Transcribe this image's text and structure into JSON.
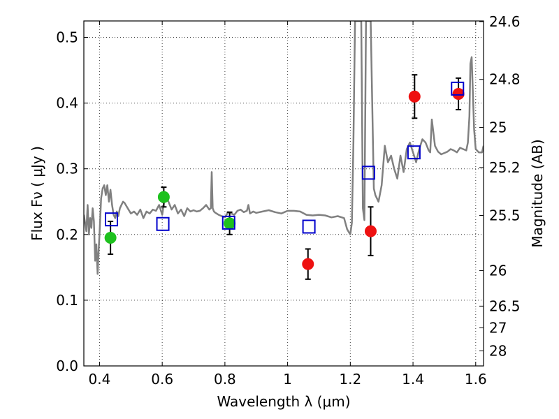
{
  "chart_data": {
    "type": "scatter",
    "title": "",
    "xlabel": "Wavelength  λ (μm)",
    "ylabel": "Flux  Fν  ( μJy )",
    "ylabel_right": "Magnitude (AB)",
    "xlim": [
      0.35,
      1.625
    ],
    "ylim": [
      0.0,
      0.525
    ],
    "grid": true,
    "x_ticks": [
      0.4,
      0.6,
      0.8,
      1.0,
      1.2,
      1.4,
      1.6
    ],
    "x_tick_labels": [
      "0.4",
      "0.6",
      "0.8",
      "1",
      "1.2",
      "1.4",
      "1.6"
    ],
    "y_ticks": [
      0.0,
      0.1,
      0.2,
      0.3,
      0.4,
      0.5
    ],
    "y_tick_labels": [
      "0.0",
      "0.1",
      "0.2",
      "0.3",
      "0.4",
      "0.5"
    ],
    "right_ticks": [
      {
        "label": "24.6",
        "flux": 0.524
      },
      {
        "label": "24.8",
        "flux": 0.436
      },
      {
        "label": "25",
        "flux": 0.363
      },
      {
        "label": "25.2",
        "flux": 0.302
      },
      {
        "label": "25.5",
        "flux": 0.229
      },
      {
        "label": "26",
        "flux": 0.145
      },
      {
        "label": "26.5",
        "flux": 0.091
      },
      {
        "label": "27",
        "flux": 0.058
      },
      {
        "label": "28",
        "flux": 0.023
      }
    ],
    "series": [
      {
        "kind": "line",
        "color": "#808080",
        "x": [
          0.35,
          0.358,
          0.362,
          0.366,
          0.37,
          0.374,
          0.378,
          0.382,
          0.386,
          0.39,
          0.394,
          0.397,
          0.4,
          0.405,
          0.41,
          0.415,
          0.42,
          0.425,
          0.43,
          0.435,
          0.44,
          0.445,
          0.45,
          0.455,
          0.46,
          0.465,
          0.47,
          0.475,
          0.48,
          0.49,
          0.5,
          0.51,
          0.52,
          0.53,
          0.54,
          0.55,
          0.56,
          0.57,
          0.58,
          0.59,
          0.6,
          0.61,
          0.62,
          0.63,
          0.64,
          0.65,
          0.66,
          0.67,
          0.68,
          0.69,
          0.7,
          0.71,
          0.72,
          0.73,
          0.74,
          0.75,
          0.755,
          0.758,
          0.761,
          0.765,
          0.77,
          0.78,
          0.79,
          0.8,
          0.81,
          0.82,
          0.83,
          0.84,
          0.85,
          0.86,
          0.87,
          0.875,
          0.88,
          0.89,
          0.9,
          0.92,
          0.94,
          0.96,
          0.98,
          1.0,
          1.02,
          1.04,
          1.06,
          1.08,
          1.1,
          1.12,
          1.14,
          1.16,
          1.18,
          1.19,
          1.2,
          1.205,
          1.21,
          1.215,
          1.22,
          1.225,
          1.23,
          1.235,
          1.24,
          1.245,
          1.25,
          1.255,
          1.26,
          1.265,
          1.27,
          1.275,
          1.28,
          1.29,
          1.3,
          1.31,
          1.32,
          1.33,
          1.34,
          1.35,
          1.36,
          1.37,
          1.38,
          1.39,
          1.4,
          1.41,
          1.42,
          1.43,
          1.44,
          1.45,
          1.455,
          1.46,
          1.47,
          1.48,
          1.49,
          1.5,
          1.51,
          1.52,
          1.53,
          1.54,
          1.55,
          1.56,
          1.57,
          1.575,
          1.58,
          1.583,
          1.587,
          1.59,
          1.595,
          1.6,
          1.61,
          1.62,
          1.625
        ],
        "values": [
          0.23,
          0.205,
          0.245,
          0.2,
          0.225,
          0.21,
          0.24,
          0.22,
          0.16,
          0.185,
          0.14,
          0.175,
          0.2,
          0.255,
          0.27,
          0.275,
          0.26,
          0.275,
          0.25,
          0.268,
          0.245,
          0.23,
          0.225,
          0.235,
          0.228,
          0.24,
          0.245,
          0.25,
          0.248,
          0.24,
          0.232,
          0.235,
          0.23,
          0.238,
          0.225,
          0.235,
          0.232,
          0.238,
          0.236,
          0.245,
          0.23,
          0.262,
          0.25,
          0.238,
          0.245,
          0.232,
          0.238,
          0.228,
          0.24,
          0.235,
          0.237,
          0.235,
          0.236,
          0.24,
          0.245,
          0.238,
          0.24,
          0.295,
          0.24,
          0.235,
          0.233,
          0.23,
          0.228,
          0.226,
          0.234,
          0.232,
          0.23,
          0.236,
          0.238,
          0.234,
          0.236,
          0.245,
          0.232,
          0.235,
          0.233,
          0.235,
          0.237,
          0.234,
          0.232,
          0.236,
          0.236,
          0.235,
          0.23,
          0.229,
          0.23,
          0.229,
          0.226,
          0.228,
          0.225,
          0.208,
          0.2,
          0.218,
          0.34,
          0.525,
          0.525,
          0.525,
          0.525,
          0.525,
          0.24,
          0.222,
          0.525,
          0.525,
          0.525,
          0.525,
          0.4,
          0.27,
          0.26,
          0.25,
          0.275,
          0.335,
          0.31,
          0.32,
          0.3,
          0.285,
          0.32,
          0.295,
          0.33,
          0.34,
          0.325,
          0.31,
          0.33,
          0.345,
          0.34,
          0.328,
          0.325,
          0.375,
          0.335,
          0.326,
          0.322,
          0.324,
          0.326,
          0.33,
          0.328,
          0.325,
          0.332,
          0.33,
          0.328,
          0.34,
          0.38,
          0.46,
          0.47,
          0.43,
          0.36,
          0.33,
          0.325,
          0.325,
          0.335
        ]
      },
      {
        "kind": "errorbar",
        "marker": "circle",
        "color": "#1ec11e",
        "x": [
          0.435,
          0.605,
          0.815
        ],
        "values": [
          0.195,
          0.257,
          0.217
        ],
        "yerr": [
          0.025,
          0.015,
          0.017
        ]
      },
      {
        "kind": "errorbar",
        "marker": "circle",
        "color": "#ee1111",
        "x": [
          1.065,
          1.265,
          1.405,
          1.545
        ],
        "values": [
          0.155,
          0.205,
          0.41,
          0.414
        ],
        "yerr": [
          0.023,
          0.037,
          0.033,
          0.024
        ]
      },
      {
        "kind": "scatter",
        "marker": "square-open",
        "color": "#0000cc",
        "x": [
          0.438,
          0.602,
          0.812,
          1.068,
          1.258,
          1.403,
          1.542
        ],
        "values": [
          0.223,
          0.216,
          0.218,
          0.212,
          0.294,
          0.325,
          0.422
        ]
      }
    ]
  }
}
